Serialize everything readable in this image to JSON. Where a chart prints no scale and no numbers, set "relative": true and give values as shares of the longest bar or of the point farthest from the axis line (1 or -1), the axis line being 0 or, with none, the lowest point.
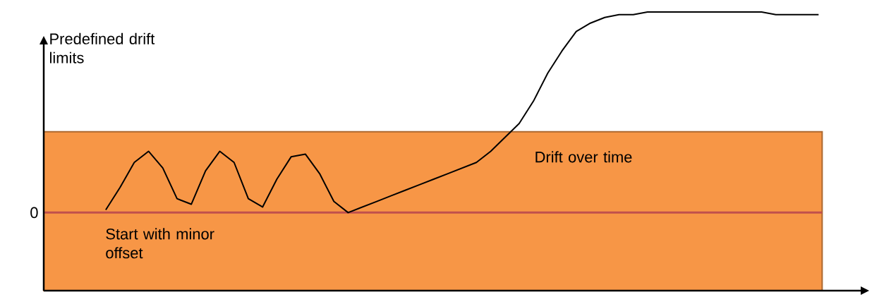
{
  "chart_data": {
    "type": "line",
    "relative": true,
    "ylabel": "Predefined drift limits",
    "categories": [
      null,
      null,
      null,
      null,
      null,
      null,
      null,
      null,
      null,
      null,
      null,
      null,
      null,
      null,
      null,
      null,
      null,
      null,
      null,
      null,
      null,
      null,
      null,
      null,
      null,
      null,
      null,
      null,
      null,
      null,
      null,
      null,
      null,
      null,
      null,
      null,
      null,
      null,
      null,
      null,
      null,
      null,
      null,
      null,
      null,
      null,
      null,
      null,
      null,
      null,
      null
    ],
    "values": [
      0.29,
      0.37,
      0.46,
      0.5,
      0.44,
      0.33,
      0.31,
      0.43,
      0.5,
      0.46,
      0.33,
      0.3,
      0.4,
      0.48,
      0.49,
      0.42,
      0.32,
      0.28,
      0.3,
      0.32,
      0.34,
      0.36,
      0.38,
      0.4,
      0.42,
      0.44,
      0.46,
      0.5,
      0.55,
      0.6,
      0.68,
      0.78,
      0.86,
      0.93,
      0.96,
      0.98,
      0.99,
      0.99,
      1.0,
      1.0,
      1.0,
      1.0,
      1.0,
      1.0,
      1.0,
      1.0,
      1.0,
      0.99,
      0.99,
      0.99,
      0.99
    ],
    "color": "#000000",
    "marker": "none",
    "line_style": "solid",
    "bands": [
      {
        "axis": "y",
        "from": 0,
        "to": 0.57,
        "color": "#f79646"
      }
    ],
    "ref_lines": [
      {
        "axis": "y",
        "value": 0.28,
        "label": "0",
        "color": "#c0504d"
      }
    ],
    "annotations": [
      "Drift over time",
      "Start with minor offset"
    ]
  }
}
